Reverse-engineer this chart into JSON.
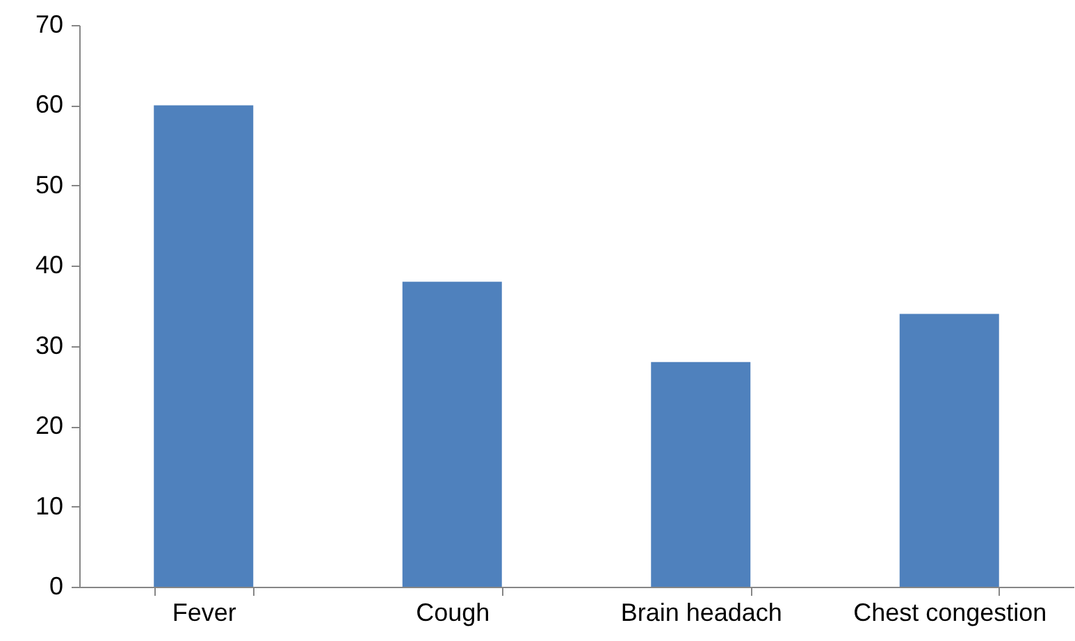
{
  "chart_data": {
    "type": "bar",
    "categories": [
      "Fever",
      "Cough",
      "Brain headach",
      "Chest congestion"
    ],
    "values": [
      60,
      38,
      28,
      34
    ],
    "color": "#4f81bd",
    "ylim": [
      0,
      70
    ],
    "yticks": [
      0,
      10,
      20,
      30,
      40,
      50,
      60,
      70
    ],
    "grid": false
  }
}
